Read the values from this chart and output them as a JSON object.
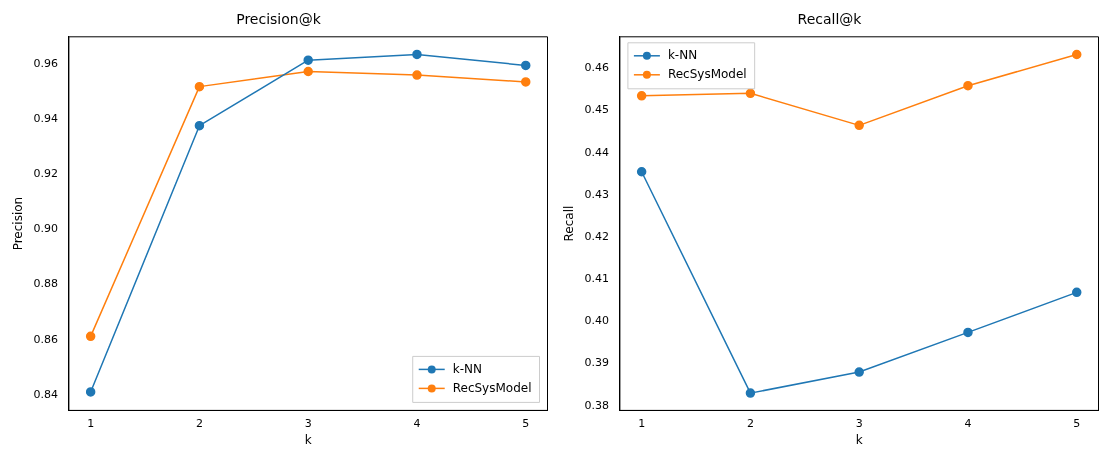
{
  "chart_data": [
    {
      "type": "line",
      "title": "Precision@k",
      "xlabel": "k",
      "ylabel": "Precision",
      "x": [
        1,
        2,
        3,
        4,
        5
      ],
      "xlim": [
        0.8,
        5.2
      ],
      "xticks": [
        1,
        2,
        3,
        4,
        5
      ],
      "ylim": [
        0.8343,
        0.97
      ],
      "yticks": [
        0.84,
        0.86,
        0.88,
        {
          "value": 0.9,
          "label": "0.90"
        },
        0.92,
        0.94,
        0.96
      ],
      "grid": false,
      "legend": "bottom right",
      "marker": "circle",
      "line_style": "solid",
      "series": [
        {
          "name": "k-NN",
          "color": "#1f77b4",
          "values": [
            0.841,
            0.9377,
            0.9615,
            0.9636,
            0.9596
          ]
        },
        {
          "name": "RecSysModel",
          "color": "#ff7f0e",
          "values": [
            0.8612,
            0.9519,
            0.9574,
            0.9561,
            0.9536
          ]
        }
      ]
    },
    {
      "type": "line",
      "title": "Recall@k",
      "xlabel": "k",
      "ylabel": "Recall",
      "x": [
        1,
        2,
        3,
        4,
        5
      ],
      "xlim": [
        0.8,
        5.2
      ],
      "xticks": [
        1,
        2,
        3,
        4,
        5
      ],
      "ylim": [
        0.3789,
        0.4675
      ],
      "yticks": [
        0.38,
        0.39,
        {
          "value": 0.4,
          "label": "0.40"
        },
        0.41,
        0.42,
        0.43,
        0.44,
        0.45,
        0.46
      ],
      "grid": false,
      "legend": "top left",
      "marker": "circle",
      "line_style": "solid",
      "series": [
        {
          "name": "k-NN",
          "color": "#1f77b4",
          "values": [
            0.4355,
            0.383,
            0.388,
            0.3974,
            0.4069
          ]
        },
        {
          "name": "RecSysModel",
          "color": "#ff7f0e",
          "values": [
            0.4535,
            0.4541,
            0.4465,
            0.4559,
            0.4633
          ]
        }
      ]
    }
  ]
}
